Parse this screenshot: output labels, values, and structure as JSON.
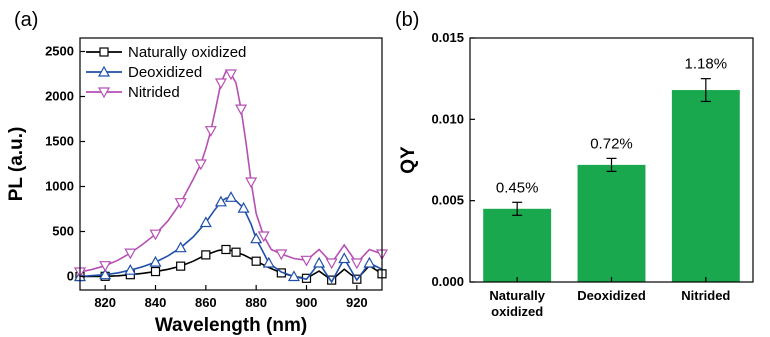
{
  "panel_a_label": "(a)",
  "panel_b_label": "(b)",
  "chart_data": [
    {
      "type": "line",
      "xlabel": "Wavelength (nm)",
      "ylabel": "PL (a.u.)",
      "xlim": [
        810,
        930
      ],
      "ylim": [
        -150,
        2650
      ],
      "xticks": [
        820,
        840,
        860,
        880,
        900,
        920
      ],
      "yticks": [
        0,
        500,
        1000,
        1500,
        2000,
        2500
      ],
      "legend_position": "top-left",
      "series": [
        {
          "name": "Naturally oxidized",
          "color": "#000000",
          "marker": "square",
          "x": [
            810,
            815,
            820,
            825,
            830,
            835,
            840,
            845,
            850,
            855,
            860,
            865,
            868,
            870,
            872,
            875,
            880,
            885,
            890,
            895,
            900,
            905,
            910,
            915,
            920,
            925,
            930
          ],
          "y": [
            0,
            0,
            2,
            8,
            20,
            35,
            55,
            80,
            115,
            170,
            240,
            290,
            300,
            290,
            270,
            240,
            170,
            100,
            40,
            0,
            -20,
            60,
            -40,
            80,
            -30,
            120,
            30
          ]
        },
        {
          "name": "Deoxidized",
          "color": "#1f4fa8",
          "marker": "triangle-up",
          "x": [
            810,
            815,
            820,
            825,
            830,
            835,
            840,
            845,
            850,
            855,
            860,
            863,
            866,
            868,
            870,
            872,
            875,
            878,
            880,
            883,
            885,
            890,
            895,
            900,
            905,
            910,
            915,
            920,
            925,
            930
          ],
          "y": [
            0,
            10,
            20,
            40,
            70,
            110,
            160,
            230,
            320,
            440,
            600,
            720,
            830,
            870,
            880,
            840,
            760,
            580,
            420,
            260,
            150,
            50,
            0,
            -30,
            150,
            -60,
            200,
            -40,
            150,
            80
          ]
        },
        {
          "name": "Nitrided",
          "color": "#b64fb4",
          "marker": "triangle-down",
          "x": [
            810,
            815,
            820,
            825,
            830,
            835,
            840,
            845,
            850,
            855,
            858,
            860,
            862,
            864,
            866,
            868,
            870,
            872,
            874,
            876,
            878,
            880,
            883,
            886,
            890,
            895,
            900,
            905,
            910,
            915,
            920,
            925,
            930
          ],
          "y": [
            50,
            80,
            120,
            180,
            260,
            360,
            470,
            620,
            820,
            1080,
            1250,
            1420,
            1620,
            1880,
            2150,
            2280,
            2250,
            2150,
            1860,
            1480,
            1050,
            700,
            450,
            300,
            250,
            200,
            180,
            300,
            150,
            350,
            150,
            300,
            250
          ]
        }
      ]
    },
    {
      "type": "bar",
      "xlabel": "",
      "ylabel": "QY",
      "ylim": [
        0,
        0.015
      ],
      "yticks": [
        "0.000",
        "0.005",
        "0.010",
        "0.015"
      ],
      "categories": [
        [
          "Naturally",
          "oxidized"
        ],
        [
          "Deoxidized"
        ],
        [
          "Nitrided"
        ]
      ],
      "values": [
        0.0045,
        0.0072,
        0.0118
      ],
      "errors": [
        0.0004,
        0.0004,
        0.0007
      ],
      "bar_labels": [
        "0.45%",
        "0.72%",
        "1.18%"
      ],
      "bar_color": "#1aa84f"
    }
  ]
}
